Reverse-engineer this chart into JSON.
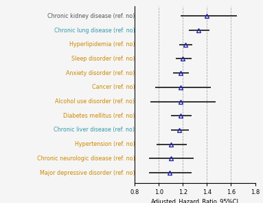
{
  "categories": [
    "Chronic kidney disease (ref. no)",
    "Chronic lung disease (ref. no)",
    "Hyperlipidemia (ref. no)",
    "Sleep disorder (ref. no)",
    "Anxiety disorder (ref. no)",
    "Cancer (ref. no)",
    "Alcohol use disorder (ref. no)",
    "Diabetes mellitus (ref. no)",
    "Chronic liver disease (ref. no)",
    "Hypertension (ref. no)",
    "Chronic neurologic disease (ref. no)",
    "Major depressive disorder (ref. no)"
  ],
  "hr": [
    1.4,
    1.33,
    1.22,
    1.2,
    1.18,
    1.18,
    1.18,
    1.18,
    1.17,
    1.1,
    1.1,
    1.09
  ],
  "ci_low": [
    1.18,
    1.25,
    1.17,
    1.14,
    1.12,
    0.97,
    0.93,
    1.1,
    1.1,
    0.98,
    0.92,
    0.92
  ],
  "ci_high": [
    1.65,
    1.42,
    1.28,
    1.27,
    1.25,
    1.43,
    1.47,
    1.27,
    1.25,
    1.23,
    1.29,
    1.27
  ],
  "xlim": [
    0.8,
    1.8
  ],
  "xticks": [
    0.8,
    1.0,
    1.2,
    1.4,
    1.6,
    1.8
  ],
  "xlabel": "Adjusted_Hazard_Ratio_95%CI",
  "marker_color": "#2222AA",
  "line_color": "#111111",
  "label_colors": [
    "#555555",
    "#3399AA",
    "#CC8800",
    "#CC8800",
    "#CC8800",
    "#CC8800",
    "#CC8800",
    "#CC8800",
    "#3399AA",
    "#CC8800",
    "#CC8800",
    "#CC8800"
  ],
  "grid_color": "#AAAAAA",
  "background_color": "#F5F5F5",
  "figsize": [
    3.83,
    2.95
  ],
  "dpi": 100,
  "label_fontsize": 5.8,
  "tick_fontsize": 6.0
}
